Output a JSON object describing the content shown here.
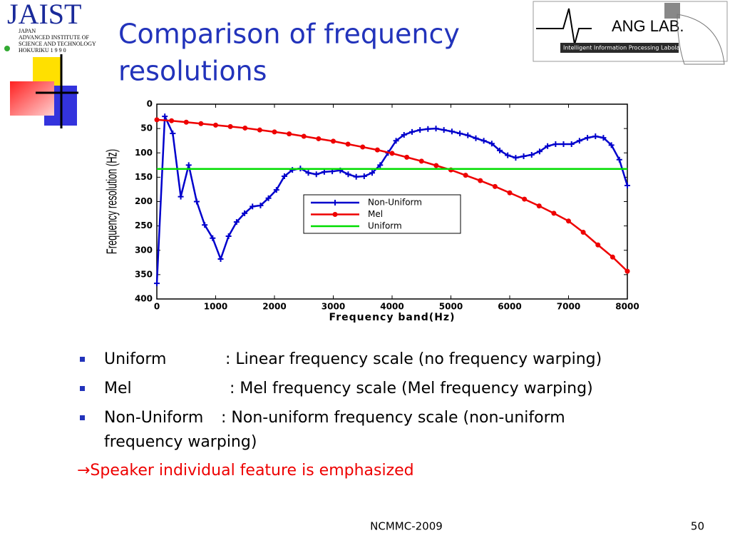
{
  "slide": {
    "title_lines": [
      "Comparison of frequency",
      "resolutions"
    ],
    "logo_left": {
      "name": "JAIST",
      "lines": [
        "JAPAN",
        "ADVANCED  INSTITUTE  OF",
        "SCIENCE AND TECHNOLOGY",
        "HOKURIKU   1 9 9 0"
      ]
    },
    "logo_right": {
      "name": "ANG LAB.",
      "subtitle": "Intelligent Information Processing Labolatory"
    },
    "bullets": [
      {
        "term": "Uniform",
        "text": ": Linear frequency scale (no frequency warping)"
      },
      {
        "term": "Mel",
        "text": ": Mel frequency scale (Mel frequency warping)"
      },
      {
        "term": "Non-Uniform",
        "text": ": Non-uniform frequency scale (non-uniform",
        "text2": "frequency warping)"
      }
    ],
    "conclusion": "→Speaker individual feature is emphasized",
    "footer": "NCMMC-2009",
    "page_number": "50"
  },
  "chart_data": {
    "type": "line",
    "xlabel": "Frequency band(Hz)",
    "ylabel": "Frequency resolution (Hz)",
    "xlim": [
      0,
      8000
    ],
    "xticks": [
      0,
      1000,
      2000,
      3000,
      4000,
      5000,
      6000,
      7000,
      8000
    ],
    "ylim": [
      0,
      400
    ],
    "y_inverted": true,
    "yticks": [
      0,
      50,
      100,
      150,
      200,
      250,
      300,
      350,
      400
    ],
    "grid": false,
    "legend": "inside-center",
    "series": [
      {
        "name": "Non-Uniform",
        "color": "#0000cc",
        "marker": "plus",
        "x": [
          0,
          136,
          271,
          407,
          542,
          678,
          814,
          949,
          1085,
          1220,
          1356,
          1492,
          1627,
          1763,
          1898,
          2034,
          2169,
          2305,
          2441,
          2576,
          2712,
          2847,
          2983,
          3119,
          3254,
          3390,
          3525,
          3661,
          3797,
          3932,
          4068,
          4203,
          4339,
          4475,
          4610,
          4746,
          4881,
          5017,
          5153,
          5288,
          5424,
          5559,
          5695,
          5831,
          5966,
          6102,
          6237,
          6373,
          6508,
          6644,
          6780,
          6915,
          7051,
          7186,
          7322,
          7458,
          7593,
          7729,
          7864,
          8000
        ],
        "values": [
          368,
          25,
          60,
          190,
          125,
          200,
          248,
          275,
          318,
          271,
          242,
          224,
          210,
          208,
          193,
          176,
          148,
          135,
          132,
          141,
          144,
          139,
          138,
          136,
          144,
          149,
          148,
          141,
          125,
          100,
          75,
          63,
          57,
          53,
          51,
          50,
          53,
          56,
          60,
          64,
          70,
          75,
          81,
          95,
          105,
          110,
          107,
          104,
          97,
          86,
          82,
          82,
          82,
          75,
          69,
          66,
          69,
          84,
          114,
          167
        ]
      },
      {
        "name": "Mel",
        "color": "#ee0000",
        "marker": "dot",
        "x": [
          0,
          250,
          500,
          750,
          1000,
          1250,
          1500,
          1750,
          2000,
          2250,
          2500,
          2750,
          3000,
          3250,
          3500,
          3750,
          4000,
          4250,
          4500,
          4750,
          5000,
          5250,
          5500,
          5750,
          6000,
          6250,
          6500,
          6750,
          7000,
          7250,
          7500,
          7750,
          8000
        ],
        "values": [
          32,
          34,
          37,
          40,
          43,
          46,
          49,
          53,
          57,
          61,
          66,
          71,
          76,
          82,
          88,
          94,
          101,
          109,
          117,
          126,
          135,
          146,
          157,
          169,
          182,
          195,
          209,
          224,
          240,
          263,
          289,
          314,
          343
        ]
      },
      {
        "name": "Uniform",
        "color": "#00dd00",
        "marker": "none",
        "x": [
          0,
          8000
        ],
        "values": [
          133,
          133
        ]
      }
    ]
  }
}
